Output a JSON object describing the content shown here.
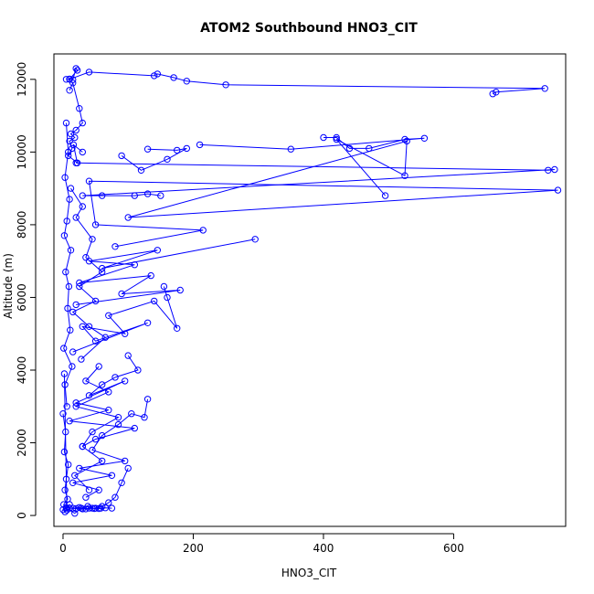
{
  "chart_data": {
    "type": "scatter",
    "title": "ATOM2 Southbound HNO3_CIT",
    "xlabel": "HNO3_CIT",
    "ylabel": "Altitude (m)",
    "xlim": [
      -14,
      772
    ],
    "ylim": [
      -300,
      12700
    ],
    "xticks": [
      0,
      200,
      400,
      600
    ],
    "yticks": [
      0,
      2000,
      4000,
      6000,
      8000,
      10000,
      12000
    ],
    "grid": false,
    "legend": "none",
    "line_style": "both",
    "color": "#0000ff",
    "series": [
      {
        "x": [
          5,
          10,
          15,
          20,
          22,
          10,
          40,
          140,
          145,
          170,
          190,
          250,
          740,
          665,
          660
        ],
        "y": [
          12000,
          12010,
          11990,
          12300,
          12250,
          12000,
          12200,
          12100,
          12150,
          12050,
          11950,
          11850,
          11750,
          11650,
          11600
        ]
      },
      {
        "x": [
          10,
          15,
          25,
          30,
          20,
          12,
          18,
          10,
          14,
          8,
          22,
          16,
          30
        ],
        "y": [
          11700,
          11900,
          11200,
          10800,
          10600,
          10500,
          10400,
          10300,
          10100,
          9900,
          9700,
          10200,
          10000
        ]
      },
      {
        "x": [
          400,
          420,
          440,
          470,
          525,
          555,
          350,
          210
        ],
        "y": [
          10400,
          10400,
          10100,
          10100,
          10350,
          10380,
          10080,
          10200
        ]
      },
      {
        "x": [
          130,
          175,
          190,
          160,
          120,
          90
        ],
        "y": [
          10080,
          10050,
          10100,
          9800,
          9500,
          9900
        ]
      },
      {
        "x": [
          20,
          745,
          755,
          30,
          60,
          110,
          130,
          150
        ],
        "y": [
          9700,
          9500,
          9520,
          8800,
          8800,
          8800,
          8850,
          8800
        ]
      },
      {
        "x": [
          495,
          420,
          525,
          528,
          100,
          760,
          40,
          50,
          215,
          80
        ],
        "y": [
          8800,
          10350,
          9350,
          10300,
          8200,
          8950,
          9200,
          8000,
          7850,
          7400
        ]
      },
      {
        "x": [
          295,
          60,
          145,
          40,
          110,
          25,
          135,
          90,
          180,
          20
        ],
        "y": [
          7600,
          6800,
          7300,
          7000,
          6900,
          6400,
          6600,
          6100,
          6200,
          5800
        ]
      },
      {
        "x": [
          155,
          160,
          175,
          140,
          70,
          95,
          30,
          50,
          130,
          15
        ],
        "y": [
          6300,
          6000,
          5150,
          5900,
          5500,
          5000,
          5200,
          4800,
          5300,
          4500
        ]
      },
      {
        "x": [
          100,
          115,
          80,
          60,
          40,
          95,
          20,
          70,
          10,
          110,
          50,
          30
        ],
        "y": [
          4400,
          4000,
          3800,
          3600,
          3300,
          3700,
          3100,
          2900,
          2600,
          2400,
          2100,
          1900
        ]
      },
      {
        "x": [
          130,
          125,
          105,
          85,
          60,
          45,
          95,
          25,
          75,
          15,
          55,
          35
        ],
        "y": [
          3200,
          2700,
          2800,
          2500,
          2200,
          1800,
          1500,
          1300,
          1100,
          900,
          700,
          500
        ]
      },
      {
        "x": [
          100,
          90,
          80,
          70,
          60,
          50,
          40,
          30,
          20,
          10,
          5,
          0,
          3
        ],
        "y": [
          1300,
          900,
          500,
          350,
          250,
          200,
          200,
          180,
          190,
          200,
          220,
          160,
          100
        ]
      },
      {
        "x": [
          75,
          65,
          55,
          45,
          35,
          25,
          15,
          10,
          5,
          18,
          28,
          38,
          48,
          58
        ],
        "y": [
          200,
          210,
          190,
          200,
          180,
          220,
          200,
          300,
          200,
          60,
          200,
          250,
          190,
          200
        ]
      },
      {
        "x": [
          5,
          8,
          3,
          10,
          6,
          2,
          12,
          4,
          9,
          7,
          11,
          1,
          14,
          3,
          6
        ],
        "y": [
          10800,
          10000,
          9300,
          8700,
          8100,
          7700,
          7300,
          6700,
          6300,
          5700,
          5100,
          4600,
          4100,
          3600,
          3000
        ]
      },
      {
        "x": [
          0,
          4,
          2,
          8,
          5,
          3,
          7,
          1,
          6,
          2
        ],
        "y": [
          2800,
          2300,
          1750,
          1400,
          1000,
          700,
          450,
          300,
          150,
          3900
        ]
      },
      {
        "x": [
          12,
          30,
          20,
          45,
          35,
          60,
          25,
          50,
          15,
          40,
          65,
          28
        ],
        "y": [
          9000,
          8500,
          8200,
          7600,
          7100,
          6700,
          6300,
          5900,
          5600,
          5200,
          4900,
          4300
        ]
      },
      {
        "x": [
          55,
          35,
          70,
          20,
          85,
          45,
          30,
          60,
          18,
          40
        ],
        "y": [
          4100,
          3700,
          3400,
          3000,
          2700,
          2300,
          1900,
          1500,
          1100,
          700
        ]
      }
    ]
  }
}
